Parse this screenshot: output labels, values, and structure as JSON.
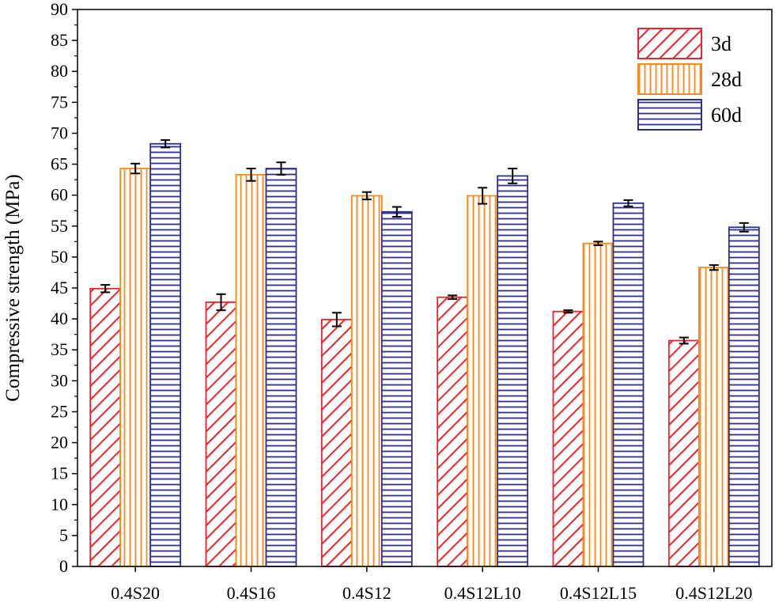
{
  "chart_data": {
    "type": "bar",
    "title": "",
    "xlabel": "",
    "ylabel": "Compressive strength (MPa)",
    "ylim": [
      0,
      90
    ],
    "ytick_step": 5,
    "categories": [
      "0.4S20",
      "0.4S16",
      "0.4S12",
      "0.4S12L10",
      "0.4S12L15",
      "0.4S12L20"
    ],
    "series": [
      {
        "name": "3d",
        "color": "#e8262b",
        "pattern": "diagonal-hatch",
        "values": [
          44.9,
          42.7,
          39.9,
          43.5,
          41.2,
          36.5
        ],
        "errors": [
          0.6,
          1.3,
          1.1,
          0.3,
          0.2,
          0.5
        ]
      },
      {
        "name": "28d",
        "color": "#f28c1b",
        "pattern": "vertical-lines",
        "values": [
          64.3,
          63.3,
          59.9,
          59.9,
          52.2,
          48.3
        ],
        "errors": [
          0.8,
          1.0,
          0.6,
          1.3,
          0.3,
          0.4
        ]
      },
      {
        "name": "60d",
        "color": "#2b2e8c",
        "pattern": "horizontal-lines",
        "values": [
          68.3,
          64.3,
          57.3,
          63.1,
          58.7,
          54.8
        ],
        "errors": [
          0.6,
          1.0,
          0.8,
          1.2,
          0.5,
          0.7
        ]
      }
    ],
    "legend_position": "top-right"
  }
}
